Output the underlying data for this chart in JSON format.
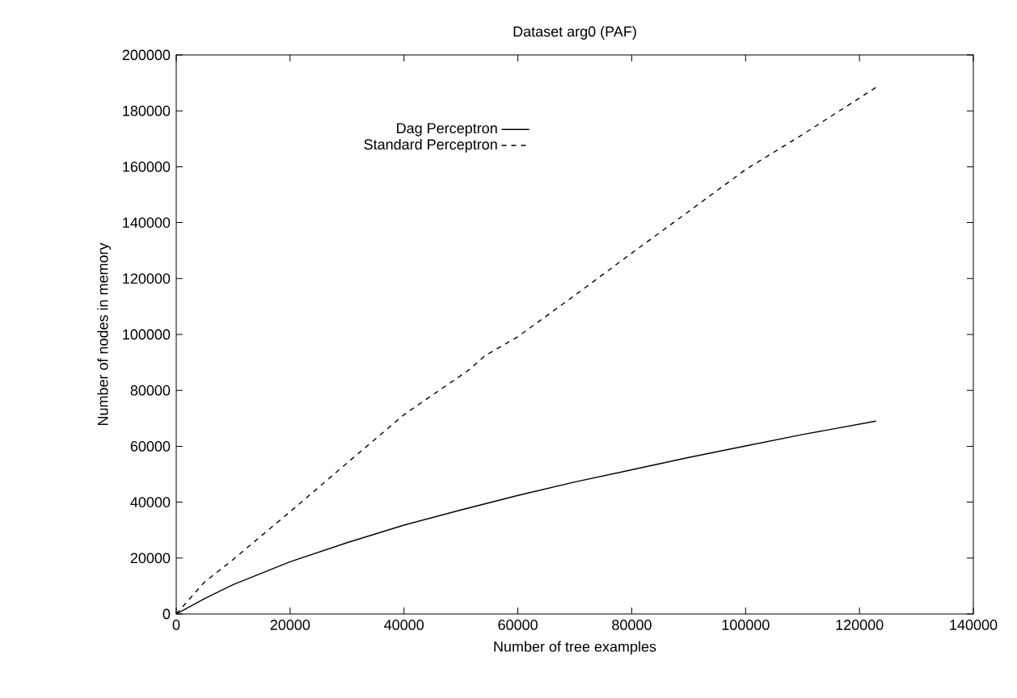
{
  "chart_data": {
    "type": "line",
    "title": "Dataset arg0 (PAF)",
    "xlabel": "Number of tree examples",
    "ylabel": "Number of nodes in memory",
    "xlim": [
      0,
      140000
    ],
    "xticks": [
      0,
      20000,
      40000,
      60000,
      80000,
      100000,
      120000,
      140000
    ],
    "ylim": [
      0,
      200000
    ],
    "yticks": [
      0,
      20000,
      40000,
      60000,
      80000,
      100000,
      120000,
      140000,
      160000,
      180000,
      200000
    ],
    "legend": "top left",
    "marker": "none",
    "series": [
      {
        "name": "Dag Perceptron",
        "color": "#000000",
        "line_style": "solid",
        "x": [
          0,
          5000,
          10000,
          20000,
          30000,
          40000,
          50000,
          60000,
          70000,
          80000,
          90000,
          100000,
          110000,
          122900
        ],
        "values": [
          0,
          5500,
          10500,
          18700,
          25500,
          31800,
          37200,
          42400,
          47200,
          51600,
          56000,
          60100,
          64200,
          69000
        ]
      },
      {
        "name": "Standard Perceptron",
        "color": "#000000",
        "line_style": "dashed",
        "x": [
          0,
          5000,
          10000,
          20000,
          30000,
          40000,
          51400,
          54300,
          60000,
          70000,
          80000,
          90000,
          100000,
          110000,
          122900
        ],
        "values": [
          0,
          11500,
          19500,
          36600,
          54000,
          71300,
          87300,
          92500,
          99200,
          114000,
          129100,
          144000,
          159000,
          171500,
          188400
        ]
      }
    ]
  }
}
